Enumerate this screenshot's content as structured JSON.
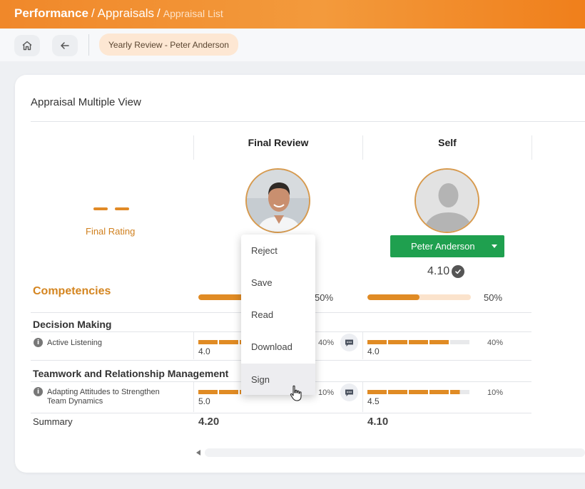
{
  "breadcrumb": {
    "level1": "Performance",
    "level2": "Appraisals",
    "level3": "Appraisal List"
  },
  "toolbar": {
    "chip_label": "Yearly Review - Peter Anderson"
  },
  "card": {
    "title": "Appraisal Multiple View"
  },
  "columns": {
    "final_review": "Final Review",
    "self": "Self"
  },
  "final_rating": {
    "label": "Final Rating"
  },
  "self_panel": {
    "user_button": "Peter Anderson",
    "score": "4.10"
  },
  "competencies": {
    "label": "Competencies",
    "final_review_progress": 0.5,
    "final_review_pct": "50%",
    "self_progress": 0.5,
    "self_pct": "50%"
  },
  "sections": [
    {
      "name": "Decision Making",
      "item": "Active Listening",
      "final_review": {
        "value": "4.0",
        "pct": "40%",
        "filled_segments": 4,
        "total_segments": 5
      },
      "self": {
        "value": "4.0",
        "pct": "40%",
        "filled_segments": 4,
        "total_segments": 5
      }
    },
    {
      "name": "Teamwork and Relationship Management",
      "item_line1": "Adapting Attitudes to Strengthen",
      "item_line2": "Team Dynamics",
      "final_review": {
        "value": "5.0",
        "pct": "10%",
        "filled_segments": 5,
        "total_segments": 5
      },
      "self": {
        "value": "4.5",
        "pct": "10%",
        "filled_segments": 4.5,
        "total_segments": 5
      }
    }
  ],
  "summary": {
    "label": "Summary",
    "final_review": "4.20",
    "self": "4.10"
  },
  "menu": {
    "items": [
      "Reject",
      "Save",
      "Read",
      "Download",
      "Sign"
    ],
    "hovered": "Sign"
  },
  "colors": {
    "accent": "#f0882a",
    "green": "#1fa04f",
    "rating": "#e08b24"
  }
}
